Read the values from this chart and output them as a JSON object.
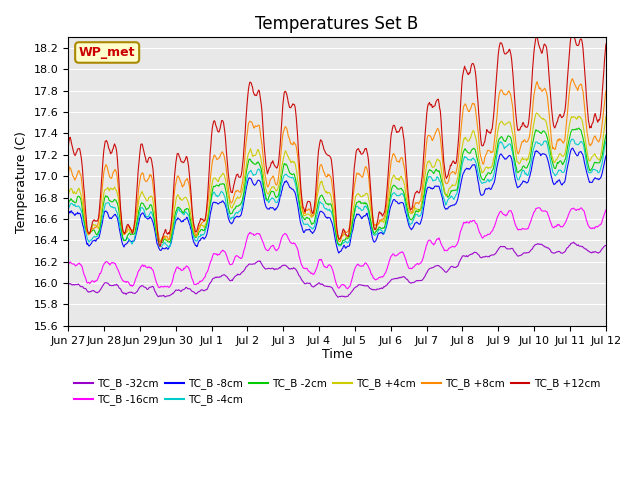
{
  "title": "Temperatures Set B",
  "xlabel": "Time",
  "ylabel": "Temperature (C)",
  "ylim": [
    15.6,
    18.3
  ],
  "legend_label": "WP_met",
  "series": [
    {
      "label": "TC_B -32cm",
      "color": "#9900cc"
    },
    {
      "label": "TC_B -16cm",
      "color": "#ff00ff"
    },
    {
      "label": "TC_B -8cm",
      "color": "#0000ff"
    },
    {
      "label": "TC_B -4cm",
      "color": "#00cccc"
    },
    {
      "label": "TC_B -2cm",
      "color": "#00cc00"
    },
    {
      "label": "TC_B +4cm",
      "color": "#cccc00"
    },
    {
      "label": "TC_B +8cm",
      "color": "#ff8800"
    },
    {
      "label": "TC_B +12cm",
      "color": "#cc0000"
    }
  ],
  "xtick_labels": [
    "Jun 27",
    "Jun 28",
    "Jun 29",
    "Jun 30",
    "Jul 1",
    "Jul 2",
    "Jul 3",
    "Jul 4",
    "Jul 5",
    "Jul 6",
    "Jul 7",
    "Jul 8",
    "Jul 9",
    "Jul 10",
    "Jul 11",
    "Jul 12"
  ],
  "n_points": 800,
  "background_color": "#e8e8e8",
  "title_fontsize": 12,
  "axis_label_fontsize": 9,
  "tick_fontsize": 8
}
